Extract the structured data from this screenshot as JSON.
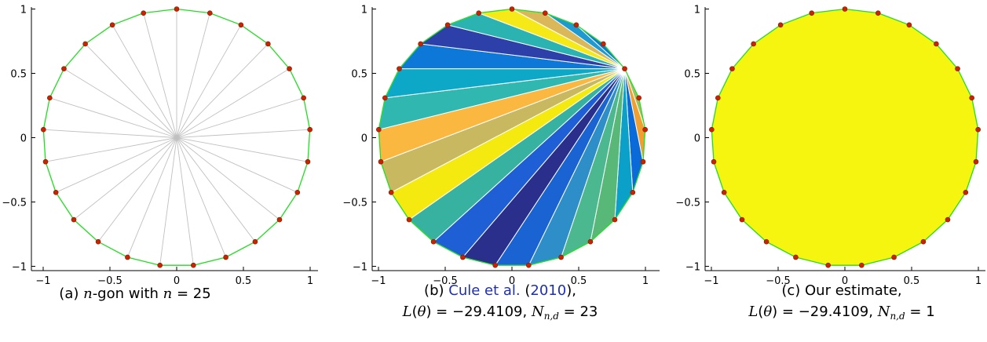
{
  "chart_data": [
    {
      "type": "scatter",
      "panel": "a",
      "description_elements": "regular polygon vertices with spokes to center",
      "n": 25,
      "xlim": [
        -1.05,
        1.05
      ],
      "ylim": [
        -1.05,
        1.05
      ],
      "x_ticks": [
        "−1",
        "−0.5",
        "0",
        "0.5",
        "1"
      ],
      "y_ticks": [
        "1",
        "0.5",
        "0",
        "−0.5",
        "−1"
      ],
      "caption": [
        "(a) ",
        "n",
        "-gon with ",
        "n",
        " = 25"
      ],
      "colors": {
        "edge": "#22dd22",
        "point": "#cc2200",
        "spoke": "#c0c0c0"
      }
    },
    {
      "type": "scatter",
      "panel": "b",
      "n": 25,
      "triangulation_pieces": 23,
      "xlim": [
        -1.05,
        1.05
      ],
      "ylim": [
        -1.05,
        1.05
      ],
      "x_ticks": [
        "−1",
        "−0.5",
        "0",
        "0.5",
        "1"
      ],
      "y_ticks": [
        "1",
        "0.5",
        "0",
        "−0.5",
        "−1"
      ],
      "caption_line1": [
        "(b) ",
        "Cule et al.",
        " (",
        "2010",
        "),"
      ],
      "caption_line2": [
        "L",
        "(",
        "θ",
        ") = −29.4109, ",
        "N",
        "n,d",
        " = 23"
      ],
      "fan_colors": [
        "#a3c060",
        "#f0a030",
        "#0a6ad8",
        "#0aa0c8",
        "#58b878",
        "#4cb890",
        "#2e8ec8",
        "#1a63d2",
        "#2b2f8c",
        "#1e5fd6",
        "#38b2a0",
        "#f5ea10",
        "#c8b860",
        "#fbb840",
        "#30b8b0",
        "#0da8c8",
        "#0e78d8",
        "#2d3fa8",
        "#2ab3b0",
        "#f5ea18",
        "#dab85a",
        "#1e9ad0",
        "#0d7ad8"
      ],
      "colors": {
        "edge": "#22dd22",
        "point": "#cc2200",
        "divider": "#ffffff"
      }
    },
    {
      "type": "scatter",
      "panel": "c",
      "n": 25,
      "triangulation_pieces": 1,
      "xlim": [
        -1.05,
        1.05
      ],
      "ylim": [
        -1.05,
        1.05
      ],
      "x_ticks": [
        "−1",
        "−0.5",
        "0",
        "0.5",
        "1"
      ],
      "y_ticks": [
        "1",
        "0.5",
        "0",
        "−0.5",
        "−1"
      ],
      "caption_line1": "(c) Our estimate,",
      "caption_line2": [
        "L",
        "(",
        "θ",
        ") = −29.4109, ",
        "N",
        "n,d",
        " = 1"
      ],
      "colors": {
        "edge": "#22dd22",
        "point": "#cc2200",
        "fill": "#f5f510"
      }
    }
  ]
}
